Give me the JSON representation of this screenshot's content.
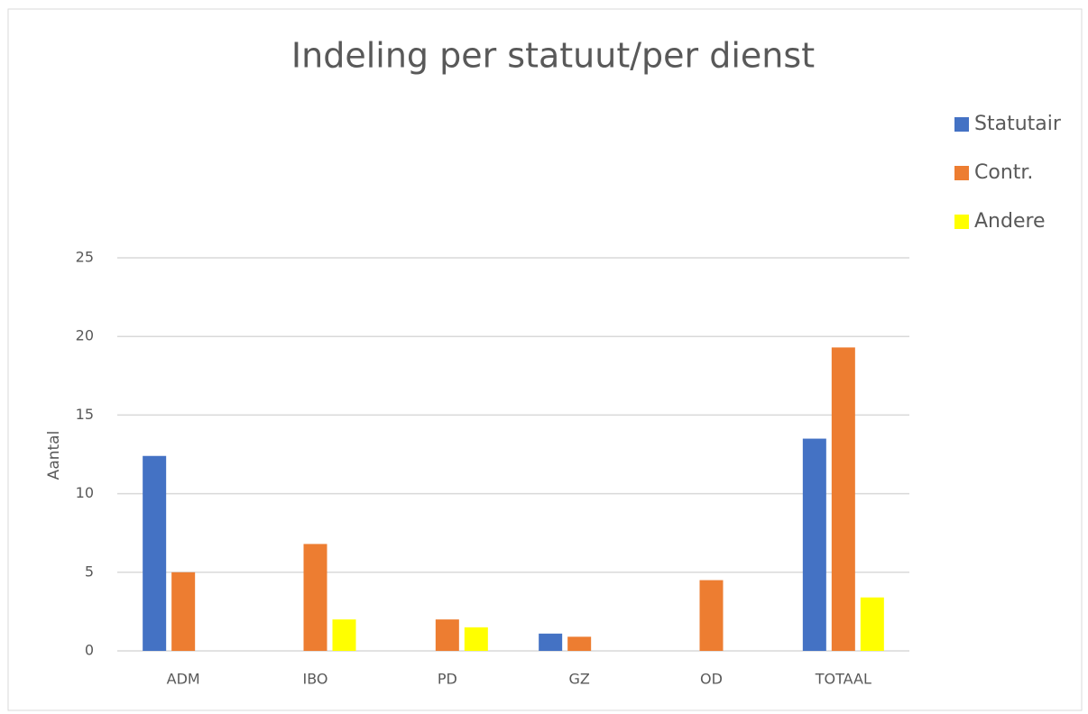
{
  "chart_data": {
    "type": "bar",
    "title": "Indeling per statuut/per dienst",
    "y_label": "Aantal",
    "categories": [
      "ADM",
      "IBO",
      "PD",
      "GZ",
      "OD",
      "TOTAAL"
    ],
    "series": [
      {
        "name": "Statutair",
        "color": "#4472c4",
        "values": [
          12.4,
          null,
          null,
          1.1,
          null,
          13.5
        ]
      },
      {
        "name": "Contr.",
        "color": "#ed7d31",
        "values": [
          5.0,
          6.8,
          2.0,
          0.9,
          4.5,
          19.3
        ]
      },
      {
        "name": "Andere",
        "color": "#ffff00",
        "values": [
          null,
          2.0,
          1.5,
          null,
          null,
          3.4
        ]
      }
    ],
    "ylim": [
      0,
      25
    ],
    "yticks": [
      0,
      5,
      10,
      15,
      20,
      25
    ],
    "grid": true,
    "legend": "right"
  }
}
